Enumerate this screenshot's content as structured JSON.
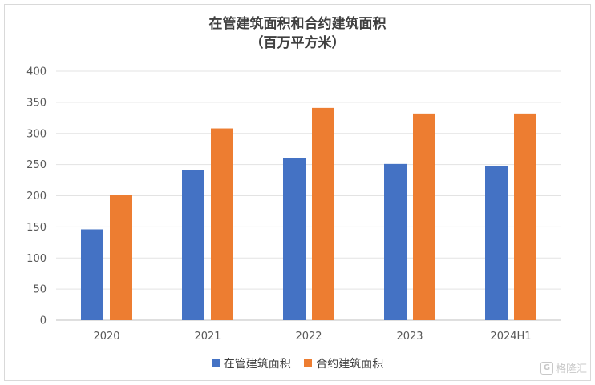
{
  "chart_data": {
    "type": "bar",
    "title": "在管建筑面积和合约建筑面积",
    "subtitle": "（百万平方米）",
    "categories": [
      "2020",
      "2021",
      "2022",
      "2023",
      "2024H1"
    ],
    "series": [
      {
        "name": "在管建筑面积",
        "color": "#4472c4",
        "values": [
          146,
          241,
          261,
          251,
          247
        ]
      },
      {
        "name": "合约建筑面积",
        "color": "#ed7d31",
        "values": [
          201,
          308,
          341,
          332,
          332
        ]
      }
    ],
    "yticks": [
      "0",
      "50",
      "100",
      "150",
      "200",
      "250",
      "300",
      "350",
      "400"
    ],
    "ylim": [
      0,
      400
    ],
    "grid": true,
    "legend": "bottom"
  },
  "watermark": {
    "icon": "G",
    "text": "格隆汇"
  }
}
